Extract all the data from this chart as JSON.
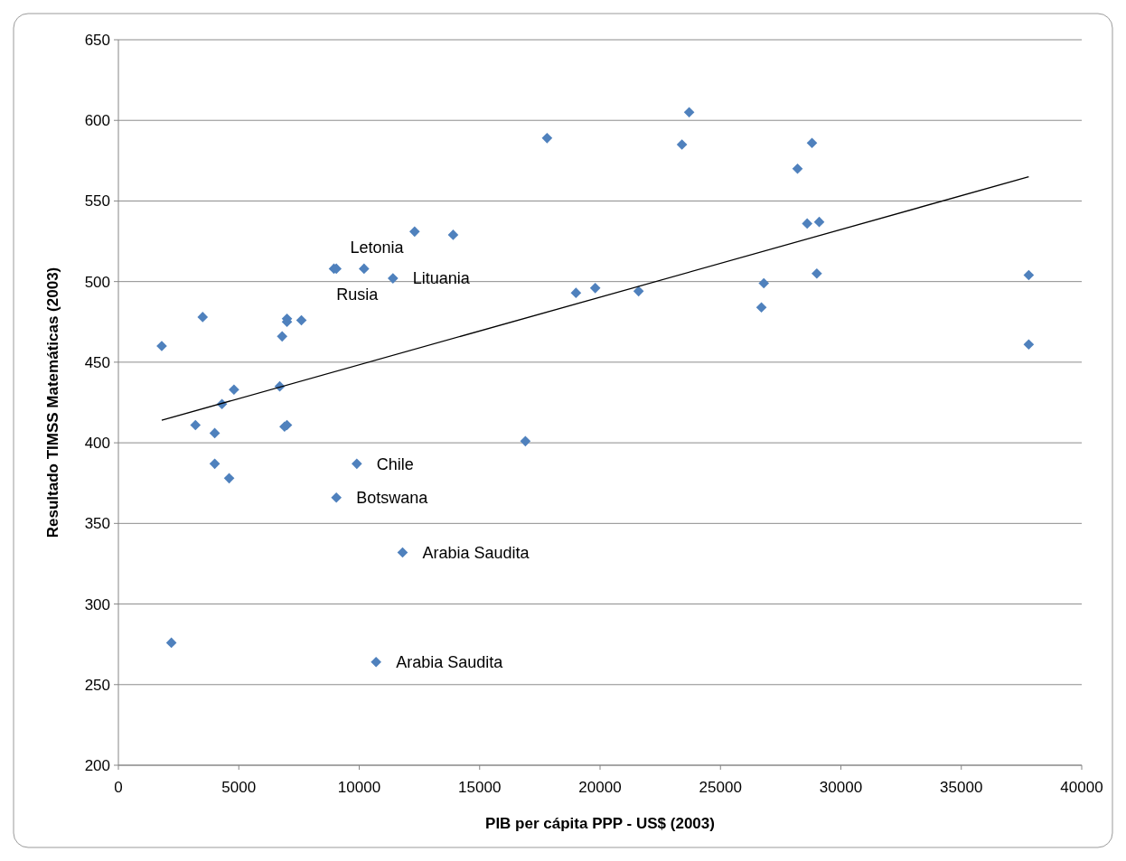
{
  "chart_data": {
    "type": "scatter",
    "xlabel": "PIB per cápita PPP - US$ (2003)",
    "ylabel": "Resultado TIMSS Matemáticas (2003)",
    "xlim": [
      0,
      40000
    ],
    "xticks": [
      0,
      5000,
      10000,
      15000,
      20000,
      25000,
      30000,
      35000,
      40000
    ],
    "ylim": [
      200,
      650
    ],
    "yticks": [
      200,
      250,
      300,
      350,
      400,
      450,
      500,
      550,
      600,
      650
    ],
    "grid": "y",
    "marker": "diamond",
    "series": [
      {
        "type": "scatter",
        "color": "#4f81bd",
        "x": [
          1800,
          2200,
          3500,
          3200,
          4300,
          4000,
          4000,
          4600,
          4800,
          6700,
          6800,
          7000,
          7000,
          7600,
          6900,
          7000,
          8950,
          9050,
          10200,
          9900,
          9050,
          11400,
          11800,
          10700,
          12300,
          13900,
          16900,
          17800,
          19000,
          19800,
          21600,
          23400,
          23700,
          26700,
          26800,
          28200,
          28600,
          28800,
          29100,
          29000,
          37800,
          37800
        ],
        "values": [
          460,
          276,
          478,
          411,
          424,
          406,
          387,
          378,
          433,
          435,
          466,
          477,
          475,
          476,
          410,
          411,
          508,
          508,
          508,
          387,
          366,
          502,
          332,
          264,
          531,
          529,
          401,
          589,
          493,
          496,
          494,
          585,
          605,
          484,
          499,
          570,
          536,
          586,
          537,
          505,
          504,
          461
        ]
      },
      {
        "type": "line",
        "color": "#000000",
        "marker": "none",
        "x": [
          1800,
          37800
        ],
        "values": [
          414,
          565
        ]
      }
    ],
    "annotations": [
      {
        "text": "Letonia",
        "x": 8950,
        "y": 508
      },
      {
        "text": "Rusia",
        "x": 9050,
        "y": 508
      },
      {
        "text": "Lituania",
        "x": 11400,
        "y": 502
      },
      {
        "text": "Chile",
        "x": 9900,
        "y": 387
      },
      {
        "text": "Botswana",
        "x": 9050,
        "y": 366
      },
      {
        "text": "Arabia Saudita",
        "x": 11800,
        "y": 332
      },
      {
        "text": "Arabia Saudita",
        "x": 10700,
        "y": 264
      }
    ]
  }
}
